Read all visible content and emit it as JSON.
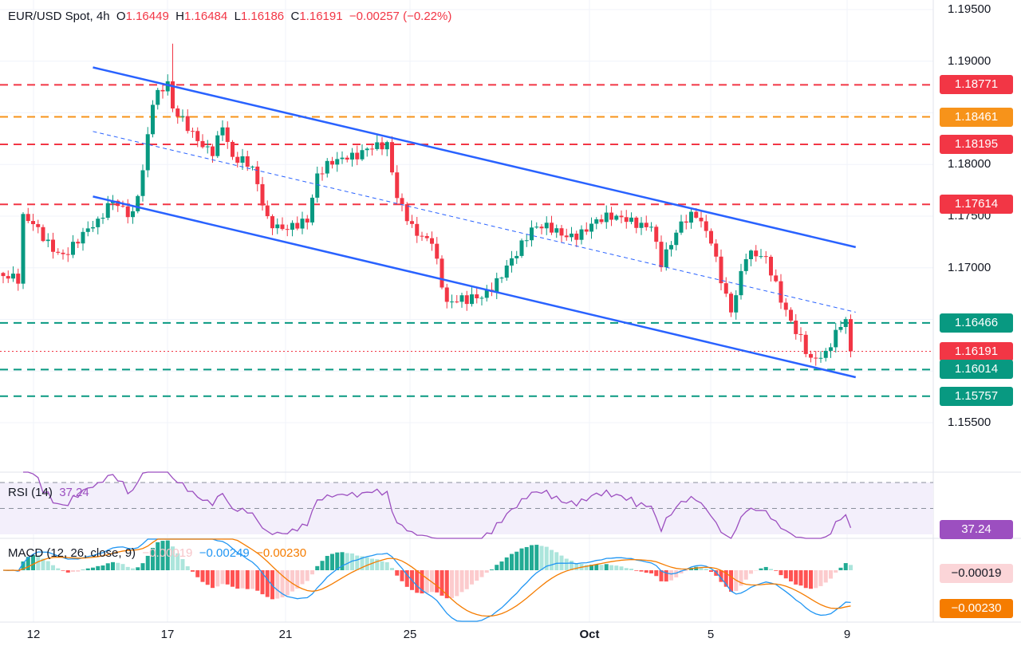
{
  "header": {
    "symbol": "EUR/USD Spot, 4h",
    "o_label": "O",
    "o": "1.16449",
    "h_label": "H",
    "h": "1.16484",
    "l_label": "L",
    "l": "1.16186",
    "c_label": "C",
    "c": "1.16191",
    "change": "−0.00257 (−0.22%)"
  },
  "rsi": {
    "title": "RSI (14)",
    "value": "37.24"
  },
  "macd": {
    "title": "MACD (12, 26, close, 9)",
    "hist": "−0.00019",
    "macd": "−0.00249",
    "signal": "−0.00230",
    "hist_label": "−0.00019",
    "signal_label": "−0.00230"
  },
  "colors": {
    "up": "#089981",
    "down": "#f23645",
    "channel": "#2962ff",
    "orange": "#f7931a",
    "rsi": "#9c4fc0",
    "macd": "#2196f3",
    "signal": "#f57c00"
  },
  "chart_data": {
    "type": "candlestick",
    "title": "EUR/USD Spot, 4h",
    "ylim": [
      1.155,
      1.195
    ],
    "price_ticks": [
      "1.19500",
      "1.19000",
      "1.18000",
      "1.17500",
      "1.17000",
      "1.15500"
    ],
    "x_ticks": [
      "12",
      "17",
      "21",
      "25",
      "Oct",
      "5",
      "9"
    ],
    "close_waypoints": [
      [
        0,
        1.1692
      ],
      [
        3,
        1.168
      ],
      [
        4,
        1.174
      ],
      [
        6,
        1.1738
      ],
      [
        12,
        1.172
      ],
      [
        19,
        1.1735
      ],
      [
        22,
        1.1765
      ],
      [
        26,
        1.176
      ],
      [
        28,
        1.18
      ],
      [
        30,
        1.186
      ],
      [
        33,
        1.187
      ],
      [
        34,
        1.1845
      ],
      [
        39,
        1.183
      ],
      [
        42,
        1.182
      ],
      [
        44,
        1.184
      ],
      [
        46,
        1.18
      ],
      [
        50,
        1.179
      ],
      [
        53,
        1.175
      ],
      [
        58,
        1.1745
      ],
      [
        61,
        1.174
      ],
      [
        63,
        1.178
      ],
      [
        66,
        1.18
      ],
      [
        69,
        1.1815
      ],
      [
        73,
        1.182
      ],
      [
        77,
        1.181
      ],
      [
        79,
        1.176
      ],
      [
        82,
        1.174
      ],
      [
        86,
        1.1735
      ],
      [
        89,
        1.1665
      ],
      [
        93,
        1.166
      ],
      [
        96,
        1.167
      ],
      [
        101,
        1.171
      ],
      [
        106,
        1.173
      ],
      [
        112,
        1.1735
      ],
      [
        118,
        1.1745
      ],
      [
        123,
        1.174
      ],
      [
        130,
        1.175
      ],
      [
        132,
        1.171
      ],
      [
        136,
        1.1735
      ],
      [
        139,
        1.1745
      ],
      [
        142,
        1.173
      ],
      [
        146,
        1.1665
      ],
      [
        149,
        1.171
      ],
      [
        153,
        1.17
      ],
      [
        156,
        1.167
      ],
      [
        160,
        1.164
      ],
      [
        162,
        1.1615
      ],
      [
        165,
        1.161
      ],
      [
        169,
        1.1645
      ],
      [
        170,
        1.16191
      ]
    ],
    "levels": [
      {
        "price": 1.18771,
        "label": "1.18771",
        "color": "#f23645",
        "style": "dashed"
      },
      {
        "price": 1.18461,
        "label": "1.18461",
        "color": "#f7931a",
        "style": "dashed"
      },
      {
        "price": 1.18195,
        "label": "1.18195",
        "color": "#f23645",
        "style": "dashed"
      },
      {
        "price": 1.17614,
        "label": "1.17614",
        "color": "#f23645",
        "style": "dashed"
      },
      {
        "price": 1.16466,
        "label": "1.16466",
        "color": "#089981",
        "style": "dashed"
      },
      {
        "price": 1.16191,
        "label": "1.16191",
        "color": "#f23645",
        "style": "dotted"
      },
      {
        "price": 1.16014,
        "label": "1.16014",
        "color": "#089981",
        "style": "dashed"
      },
      {
        "price": 1.15757,
        "label": "1.15757",
        "color": "#089981",
        "style": "dashed"
      }
    ],
    "channel": {
      "upper": [
        [
          18,
          1.1894
        ],
        [
          171,
          1.172
        ]
      ],
      "lower": [
        [
          18,
          1.1769
        ],
        [
          171,
          1.1594
        ]
      ],
      "mid": [
        [
          18,
          1.1832
        ],
        [
          171,
          1.1657
        ]
      ]
    },
    "rsi_levels": [
      70,
      50,
      30
    ]
  }
}
